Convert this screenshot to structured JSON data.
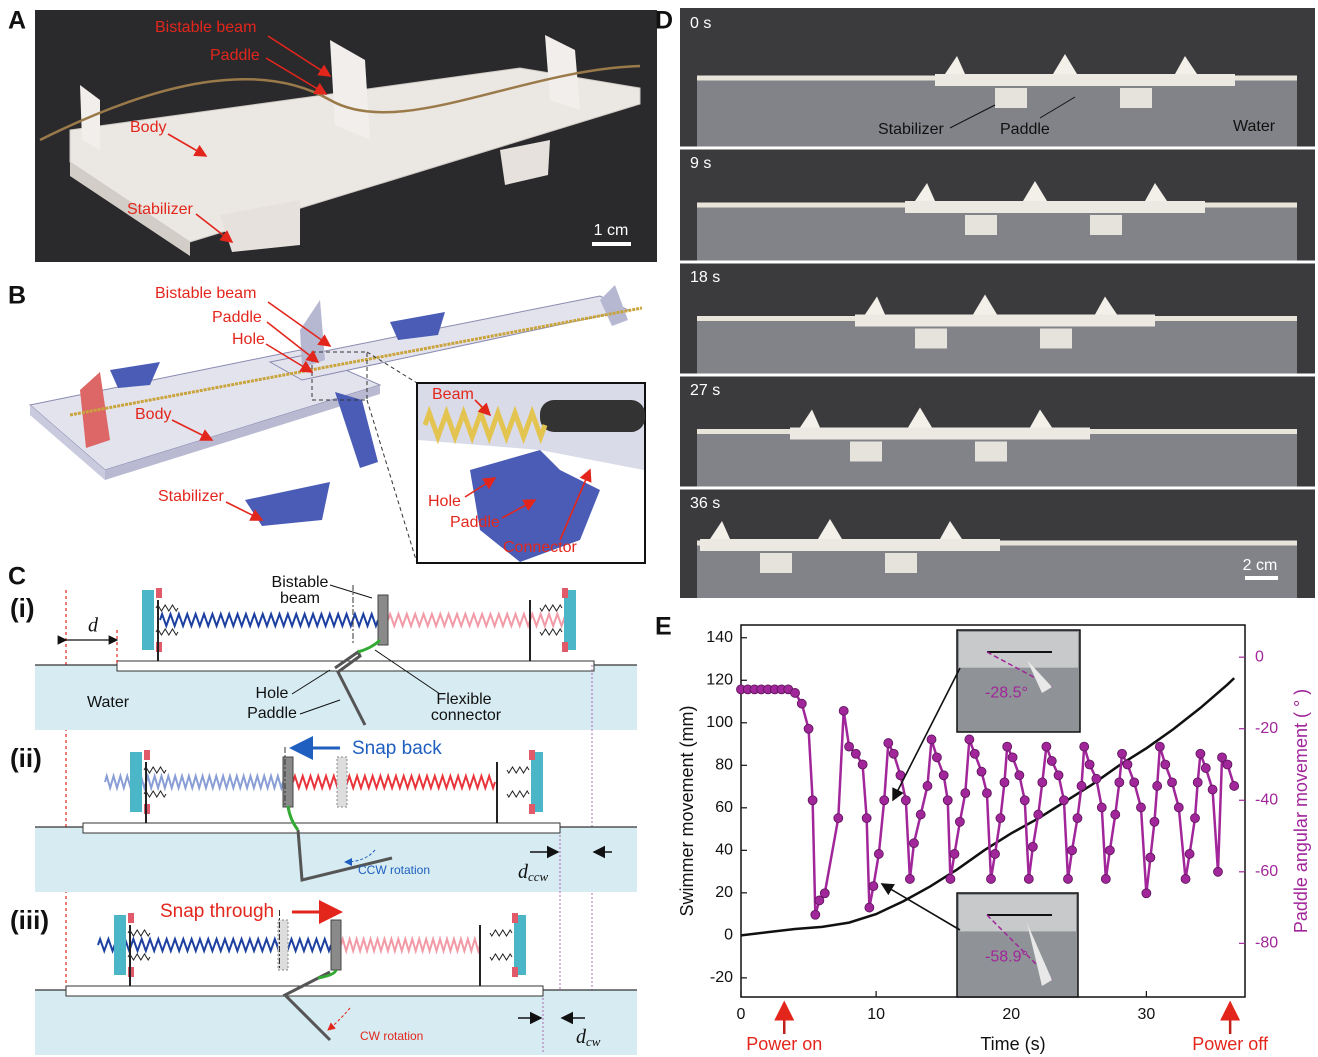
{
  "panel_a": {
    "label": "A",
    "bistable_beam": "Bistable beam",
    "paddle": "Paddle",
    "body": "Body",
    "stabilizer": "Stabilizer",
    "scale": "1 cm"
  },
  "panel_b": {
    "label": "B",
    "bistable_beam": "Bistable beam",
    "paddle": "Paddle",
    "hole": "Hole",
    "body": "Body",
    "stabilizer": "Stabilizer",
    "inset": {
      "beam": "Beam",
      "hole": "Hole",
      "paddle": "Paddle",
      "connector": "Connector"
    }
  },
  "panel_c": {
    "label": "C",
    "stage_1": {
      "label": "(i)",
      "d": "d",
      "bistable_beam": [
        "Bistable",
        "beam"
      ],
      "water": "Water",
      "hole": "Hole",
      "paddle": "Paddle",
      "flexible_connector": [
        "Flexible",
        "connector"
      ]
    },
    "stage_2": {
      "label": "(ii)",
      "snap": "Snap back",
      "rotation": "CCW rotation",
      "d": "d",
      "d_sub": "ccw"
    },
    "stage_3": {
      "label": "(iii)",
      "snap": "Snap through",
      "rotation": "CW rotation",
      "d": "d",
      "d_sub": "cw"
    }
  },
  "panel_d": {
    "label": "D",
    "frames": [
      "0 s",
      "9 s",
      "18 s",
      "27 s",
      "36 s"
    ],
    "stabilizer": "Stabilizer",
    "paddle": "Paddle",
    "water": "Water",
    "scale": "2 cm"
  },
  "chart_data": {
    "type": "line",
    "label": "E",
    "x_label": "Time (s)",
    "y_label": "Swimmer movement (mm)",
    "y2_label": "Paddle angular movement ( ° )",
    "xlim": [
      0,
      37.3
    ],
    "xticks": [
      0,
      10,
      20,
      30
    ],
    "ylim": [
      -29,
      146
    ],
    "yticks": [
      -20,
      0,
      20,
      40,
      60,
      80,
      100,
      120,
      140
    ],
    "y2lim": [
      -95,
      9
    ],
    "y2ticks": [
      0,
      -20,
      -40,
      -60,
      -80
    ],
    "series": [
      {
        "color": "#111111",
        "x": [
          0,
          2,
          4,
          6,
          8,
          10,
          12,
          14,
          16,
          18,
          20,
          22,
          24,
          26,
          28,
          30,
          32,
          34,
          36,
          36.5
        ],
        "values": [
          0,
          1.5,
          3,
          4,
          6,
          10,
          16,
          23,
          31,
          40,
          48,
          55,
          63,
          71,
          80,
          88,
          97,
          107,
          118,
          121
        ]
      },
      {
        "color": "#a0269a",
        "axis": "y2",
        "markers": true,
        "x": [
          0,
          0.5,
          1,
          1.5,
          2,
          2.5,
          3,
          3.5,
          4,
          4.5,
          5,
          5.3,
          5.5,
          5.8,
          6.2,
          7.2,
          7.6,
          8,
          8.5,
          9,
          9.3,
          9.5,
          9.8,
          10.2,
          10.6,
          10.9,
          11.3,
          11.8,
          12.2,
          12.5,
          12.8,
          13.3,
          13.8,
          14.1,
          14.5,
          15,
          15.3,
          15.5,
          15.8,
          16.2,
          16.6,
          16.9,
          17.3,
          17.8,
          18.2,
          18.5,
          18.8,
          19.2,
          19.5,
          19.7,
          20.1,
          20.6,
          21,
          21.3,
          21.6,
          22,
          22.3,
          22.6,
          23,
          23.5,
          23.9,
          24.2,
          24.5,
          24.9,
          25.2,
          25.4,
          25.8,
          26.3,
          26.7,
          27,
          27.3,
          27.7,
          28,
          28.2,
          28.6,
          29.1,
          29.6,
          30,
          30.3,
          30.6,
          30.8,
          31,
          31.4,
          31.9,
          32.4,
          32.9,
          33.2,
          33.6,
          33.8,
          34,
          34.4,
          34.9,
          35.3,
          35.6,
          36,
          36.5
        ],
        "values": [
          -9,
          -9,
          -9,
          -9,
          -9,
          -9,
          -9,
          -9,
          -10,
          -13,
          -20,
          -40,
          -72,
          -68,
          -66,
          -45,
          -15,
          -25,
          -27,
          -30,
          -45,
          -70,
          -64,
          -55,
          -40,
          -24,
          -27,
          -33,
          -40,
          -62,
          -52,
          -44,
          -36,
          -23,
          -28,
          -33,
          -40,
          -62,
          -55,
          -46,
          -38,
          -23,
          -27,
          -32,
          -38,
          -62,
          -55,
          -45,
          -35,
          -25,
          -28,
          -33,
          -40,
          -62,
          -53,
          -44,
          -35,
          -25,
          -29,
          -33,
          -40,
          -62,
          -54,
          -45,
          -36,
          -25,
          -30,
          -34,
          -42,
          -62,
          -54,
          -44,
          -35,
          -27,
          -30,
          -35,
          -42,
          -66,
          -56,
          -46,
          -36,
          -25,
          -30,
          -35,
          -42,
          -62,
          -55,
          -45,
          -35,
          -27,
          -31,
          -37,
          -60,
          -28,
          -30,
          -36
        ]
      }
    ],
    "annotations": {
      "power_on": {
        "text": "Power on",
        "x": 3.2
      },
      "power_off": {
        "text": "Power off",
        "x": 36.2
      },
      "inset_angles": [
        "-28.5°",
        "-58.9°"
      ]
    }
  }
}
